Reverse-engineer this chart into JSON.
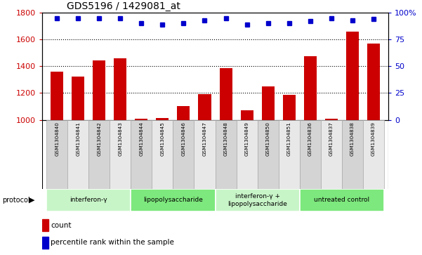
{
  "title": "GDS5196 / 1429081_at",
  "samples": [
    "GSM1304840",
    "GSM1304841",
    "GSM1304842",
    "GSM1304843",
    "GSM1304844",
    "GSM1304845",
    "GSM1304846",
    "GSM1304847",
    "GSM1304848",
    "GSM1304849",
    "GSM1304850",
    "GSM1304851",
    "GSM1304836",
    "GSM1304837",
    "GSM1304838",
    "GSM1304839"
  ],
  "counts": [
    1360,
    1325,
    1445,
    1460,
    1010,
    1015,
    1105,
    1190,
    1385,
    1070,
    1250,
    1185,
    1475,
    1010,
    1660,
    1570
  ],
  "percentile": [
    95,
    95,
    95,
    95,
    90,
    89,
    90,
    93,
    95,
    89,
    90,
    90,
    92,
    95,
    93,
    94
  ],
  "ylim_left": [
    1000,
    1800
  ],
  "ylim_right": [
    0,
    100
  ],
  "yticks_left": [
    1000,
    1200,
    1400,
    1600,
    1800
  ],
  "yticks_right": [
    0,
    25,
    50,
    75,
    100
  ],
  "groups": [
    {
      "label": "interferon-γ",
      "start": 0,
      "end": 4,
      "color": "#c8f5c8"
    },
    {
      "label": "lipopolysaccharide",
      "start": 4,
      "end": 8,
      "color": "#7de87d"
    },
    {
      "label": "interferon-γ +\nlipopolysaccharide",
      "start": 8,
      "end": 12,
      "color": "#c8f5c8"
    },
    {
      "label": "untreated control",
      "start": 12,
      "end": 16,
      "color": "#7de87d"
    }
  ],
  "bar_color": "#cc0000",
  "dot_color": "#0000cc",
  "sample_bg_even": "#d4d4d4",
  "sample_bg_odd": "#e8e8e8",
  "protocol_label": "protocol",
  "legend_count": "count",
  "legend_percentile": "percentile rank within the sample"
}
